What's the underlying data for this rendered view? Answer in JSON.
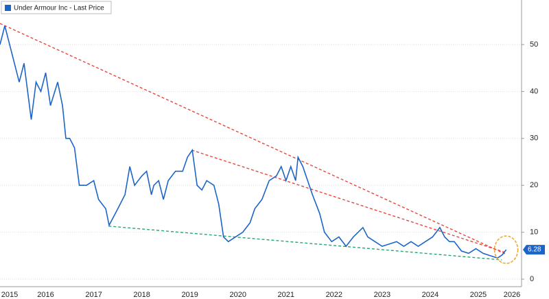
{
  "chart_data": {
    "type": "line",
    "series": [
      {
        "name": "Under Armour Inc - Last Price",
        "color": "#1c64c8",
        "x": [
          2015.55,
          2015.65,
          2015.8,
          2015.95,
          2016.05,
          2016.15,
          2016.2,
          2016.3,
          2016.4,
          2016.5,
          2016.6,
          2016.75,
          2016.85,
          2016.92,
          2017.0,
          2017.1,
          2017.2,
          2017.35,
          2017.5,
          2017.6,
          2017.75,
          2017.82,
          2017.95,
          2018.05,
          2018.15,
          2018.25,
          2018.35,
          2018.5,
          2018.6,
          2018.7,
          2018.75,
          2018.85,
          2018.95,
          2019.05,
          2019.2,
          2019.35,
          2019.45,
          2019.55,
          2019.65,
          2019.75,
          2019.85,
          2020.0,
          2020.1,
          2020.2,
          2020.3,
          2020.45,
          2020.6,
          2020.75,
          2020.85,
          2021.0,
          2021.15,
          2021.3,
          2021.4,
          2021.5,
          2021.6,
          2021.7,
          2021.75,
          2021.85,
          2021.95,
          2022.05,
          2022.2,
          2022.3,
          2022.45,
          2022.6,
          2022.75,
          2022.9,
          2023.0,
          2023.1,
          2023.2,
          2023.35,
          2023.5,
          2023.65,
          2023.8,
          2023.95,
          2024.1,
          2024.25,
          2024.4,
          2024.55,
          2024.7,
          2024.8,
          2024.9,
          2025.0,
          2025.15,
          2025.3,
          2025.45,
          2025.6,
          2025.75,
          2025.9,
          2026.0,
          2026.08
        ],
        "values": [
          50,
          54,
          48,
          42,
          46,
          38,
          34,
          42,
          40,
          44,
          37,
          42,
          37,
          30,
          30,
          28,
          20,
          20,
          21,
          17,
          15,
          11.5,
          14,
          16,
          18,
          24,
          20,
          22,
          23,
          18,
          20,
          21,
          17,
          21,
          23,
          23,
          26,
          27.5,
          20,
          19,
          21,
          20,
          16,
          9,
          8,
          9,
          10,
          12,
          15,
          17,
          21,
          22,
          24,
          21,
          24,
          21,
          26,
          24,
          21,
          18,
          14,
          10,
          8,
          9,
          7,
          9,
          10,
          11,
          9,
          8,
          7,
          7.5,
          8,
          7,
          8,
          7,
          8,
          9,
          11,
          9,
          8,
          8,
          6,
          5.5,
          6.5,
          5.5,
          5,
          4.5,
          5.2,
          6.28
        ]
      }
    ],
    "trendlines": [
      {
        "color": "#e8453c",
        "x": [
          2015.55,
          2026.06
        ],
        "y": [
          54.5,
          5.4
        ]
      },
      {
        "color": "#e8453c",
        "x": [
          2019.54,
          2026.06
        ],
        "y": [
          27.5,
          5.7
        ]
      },
      {
        "color": "#23a86b",
        "x": [
          2017.81,
          2025.99
        ],
        "y": [
          11.3,
          4.1
        ]
      }
    ],
    "highlight": {
      "color": "#f0a830",
      "x": 2026.08,
      "y": 6.28
    },
    "xlim": [
      2015.55,
      2026.4
    ],
    "ylim": [
      -1.6,
      59.5
    ],
    "xticks": [
      {
        "value": 2015.75,
        "label": "2015"
      },
      {
        "value": 2016.5,
        "label": "2016"
      },
      {
        "value": 2017.5,
        "label": "2017"
      },
      {
        "value": 2018.5,
        "label": "2018"
      },
      {
        "value": 2019.5,
        "label": "2019"
      },
      {
        "value": 2020.5,
        "label": "2020"
      },
      {
        "value": 2021.5,
        "label": "2021"
      },
      {
        "value": 2022.5,
        "label": "2022"
      },
      {
        "value": 2023.5,
        "label": "2023"
      },
      {
        "value": 2024.5,
        "label": "2024"
      },
      {
        "value": 2025.5,
        "label": "2025"
      },
      {
        "value": 2026.2,
        "label": "2026"
      }
    ],
    "yticks": [
      0,
      10,
      20,
      30,
      40,
      50
    ],
    "grid": true
  }
}
